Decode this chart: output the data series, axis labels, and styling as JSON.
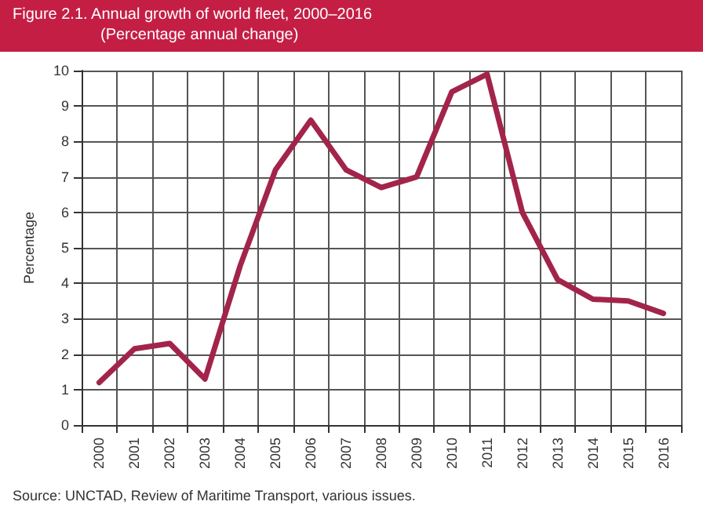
{
  "chart_data": {
    "type": "line",
    "title": "Figure 2.1.   Annual growth of world fleet, 2000–2016",
    "subtitle": "(Percentage annual change)",
    "ylabel": "Percentage",
    "categories": [
      "2000",
      "2001",
      "2002",
      "2003",
      "2004",
      "2005",
      "2006",
      "2007",
      "2008",
      "2009",
      "2010",
      "2011",
      "2012",
      "2013",
      "2014",
      "2015",
      "2016"
    ],
    "series": [
      {
        "color": "#a3244a",
        "values": [
          1.2,
          2.15,
          2.3,
          1.3,
          4.5,
          7.2,
          8.6,
          7.2,
          6.7,
          7.0,
          9.4,
          9.9,
          6.0,
          4.1,
          3.55,
          3.5,
          3.15
        ]
      }
    ],
    "ylim": [
      0,
      10
    ],
    "yticks": [
      0,
      1,
      2,
      3,
      4,
      5,
      6,
      7,
      8,
      9,
      10
    ],
    "grid": true,
    "marker": "none",
    "line_style": "solid",
    "annotations": [
      "Source:     UNCTAD, Review of Maritime Transport, various issues."
    ]
  }
}
